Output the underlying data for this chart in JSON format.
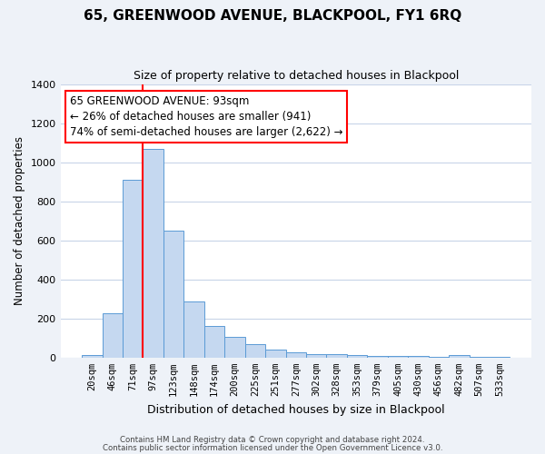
{
  "title": "65, GREENWOOD AVENUE, BLACKPOOL, FY1 6RQ",
  "subtitle": "Size of property relative to detached houses in Blackpool",
  "xlabel": "Distribution of detached houses by size in Blackpool",
  "ylabel": "Number of detached properties",
  "bar_labels": [
    "20sqm",
    "46sqm",
    "71sqm",
    "97sqm",
    "123sqm",
    "148sqm",
    "174sqm",
    "200sqm",
    "225sqm",
    "251sqm",
    "277sqm",
    "302sqm",
    "328sqm",
    "353sqm",
    "379sqm",
    "405sqm",
    "430sqm",
    "456sqm",
    "482sqm",
    "507sqm",
    "533sqm"
  ],
  "bar_values": [
    15,
    225,
    910,
    1070,
    650,
    290,
    160,
    105,
    70,
    40,
    25,
    20,
    20,
    12,
    8,
    8,
    8,
    5,
    15,
    5,
    5
  ],
  "bar_color": "#c5d8f0",
  "bar_edge_color": "#5b9bd5",
  "vline_color": "red",
  "annotation_line1": "65 GREENWOOD AVENUE: 93sqm",
  "annotation_line2": "← 26% of detached houses are smaller (941)",
  "annotation_line3": "74% of semi-detached houses are larger (2,622) →",
  "annotation_box_color": "white",
  "annotation_box_edge": "red",
  "ylim": [
    0,
    1400
  ],
  "yticks": [
    0,
    200,
    400,
    600,
    800,
    1000,
    1200,
    1400
  ],
  "footer_line1": "Contains HM Land Registry data © Crown copyright and database right 2024.",
  "footer_line2": "Contains public sector information licensed under the Open Government Licence v3.0.",
  "bg_color": "#eef2f8",
  "plot_bg_color": "#ffffff",
  "grid_color": "#c8d4e8",
  "title_fontsize": 11,
  "subtitle_fontsize": 9,
  "ylabel_fontsize": 8.5,
  "xlabel_fontsize": 9,
  "tick_fontsize": 7.5,
  "footer_fontsize": 6.2,
  "annot_fontsize": 8.5
}
